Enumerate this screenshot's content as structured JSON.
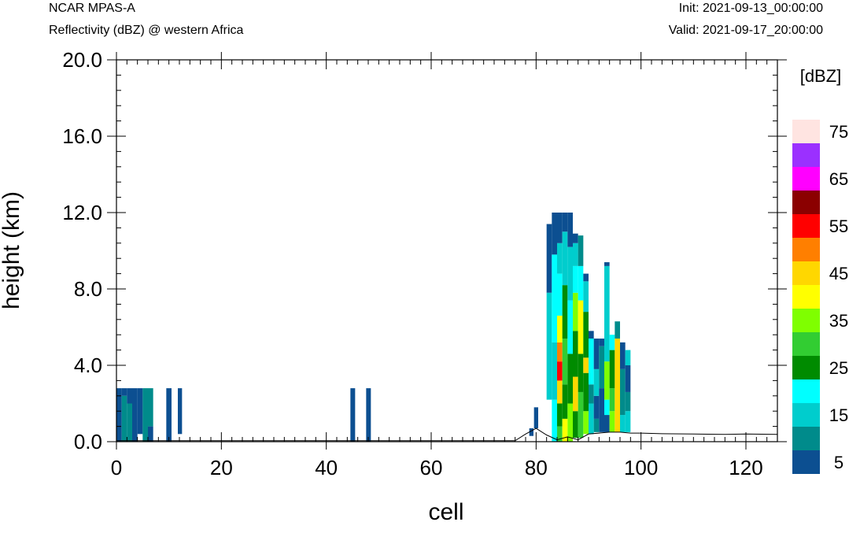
{
  "header": {
    "model": "NCAR MPAS-A",
    "subtitle": "Reflectivity (dBZ) @ western Africa",
    "init": "Init: 2021-09-13_00:00:00",
    "valid": "Valid: 2021-09-17_20:00:00"
  },
  "chart_data": {
    "type": "heatmap",
    "title": "Reflectivity (dBZ) @ western Africa",
    "xlabel": "cell",
    "ylabel": "height (km)",
    "xlim": [
      0,
      126
    ],
    "ylim": [
      0,
      20
    ],
    "x_ticks": [
      0,
      20,
      40,
      60,
      80,
      100,
      120
    ],
    "x_tick_labels": [
      "0",
      "20",
      "40",
      "60",
      "80",
      "100",
      "120"
    ],
    "y_ticks": [
      0,
      4,
      8,
      12,
      16,
      20
    ],
    "y_tick_labels": [
      "0.0",
      "4.0",
      "8.0",
      "12.0",
      "16.0",
      "20.0"
    ],
    "colorbar": {
      "unit_label": "[dBZ]",
      "levels": [
        5,
        10,
        15,
        20,
        25,
        30,
        35,
        40,
        45,
        50,
        55,
        60,
        65,
        70,
        75
      ],
      "colors": [
        "#0c4f91",
        "#008b8b",
        "#00cdcd",
        "#00ffff",
        "#008b00",
        "#32cd32",
        "#7fff00",
        "#ffff00",
        "#ffd700",
        "#ff7f00",
        "#ff0000",
        "#8b0000",
        "#ff00ff",
        "#9b30ff",
        "#ffe4e1"
      ],
      "tick_labels": [
        "5",
        "15",
        "25",
        "35",
        "45",
        "55",
        "65",
        "75"
      ]
    },
    "terrain": [
      [
        0,
        0.05
      ],
      [
        20,
        0.05
      ],
      [
        40,
        0.05
      ],
      [
        60,
        0.05
      ],
      [
        76,
        0.05
      ],
      [
        78,
        0.4
      ],
      [
        80,
        0.7
      ],
      [
        82,
        0.35
      ],
      [
        84,
        0.1
      ],
      [
        86,
        0.25
      ],
      [
        88,
        0.1
      ],
      [
        90,
        0.4
      ],
      [
        94,
        0.5
      ],
      [
        96,
        0.5
      ],
      [
        98,
        0.45
      ],
      [
        100,
        0.45
      ],
      [
        104,
        0.42
      ],
      [
        110,
        0.4
      ],
      [
        116,
        0.38
      ],
      [
        120,
        0.4
      ],
      [
        126,
        0.38
      ]
    ],
    "columns": [
      {
        "x": 0,
        "w": 1,
        "cells": [
          [
            0,
            2.8,
            5
          ]
        ]
      },
      {
        "x": 1,
        "w": 1,
        "cells": [
          [
            0,
            2.4,
            10
          ],
          [
            2.4,
            2.8,
            5
          ]
        ]
      },
      {
        "x": 2,
        "w": 1,
        "cells": [
          [
            0,
            2.0,
            10
          ],
          [
            2.0,
            2.8,
            5
          ]
        ]
      },
      {
        "x": 3,
        "w": 1,
        "cells": [
          [
            0,
            2.8,
            5
          ]
        ]
      },
      {
        "x": 4,
        "w": 1,
        "cells": [
          [
            0.4,
            2.8,
            5
          ]
        ]
      },
      {
        "x": 5,
        "w": 1,
        "cells": [
          [
            0,
            2.8,
            10
          ]
        ]
      },
      {
        "x": 6,
        "w": 1,
        "cells": [
          [
            0,
            0.8,
            5
          ],
          [
            0.8,
            2.8,
            10
          ]
        ]
      },
      {
        "x": 9.5,
        "w": 1,
        "cells": [
          [
            0,
            2.8,
            5
          ]
        ]
      },
      {
        "x": 11.7,
        "w": 0.8,
        "cells": [
          [
            0.4,
            2.8,
            5
          ]
        ]
      },
      {
        "x": 44.6,
        "w": 0.9,
        "cells": [
          [
            0,
            2.8,
            5
          ]
        ]
      },
      {
        "x": 47.6,
        "w": 0.9,
        "cells": [
          [
            0,
            2.8,
            5
          ]
        ]
      },
      {
        "x": 79.6,
        "w": 0.8,
        "cells": [
          [
            0.7,
            1.8,
            5
          ]
        ]
      },
      {
        "x": 78.7,
        "w": 0.8,
        "cells": [
          [
            0.3,
            0.7,
            5
          ]
        ]
      },
      {
        "x": 82,
        "w": 1,
        "cells": [
          [
            7.8,
            11.4,
            5
          ],
          [
            2.2,
            7.8,
            15
          ]
        ]
      },
      {
        "x": 83,
        "w": 1,
        "cells": [
          [
            0,
            2.2,
            20
          ],
          [
            2.2,
            5.2,
            15
          ],
          [
            5.2,
            9.8,
            20
          ],
          [
            9.8,
            12.0,
            5
          ]
        ]
      },
      {
        "x": 84,
        "w": 1,
        "cells": [
          [
            0,
            0.8,
            30
          ],
          [
            0.8,
            2.0,
            25
          ],
          [
            2.0,
            3.2,
            45
          ],
          [
            3.2,
            4.2,
            55
          ],
          [
            4.2,
            5.2,
            50
          ],
          [
            5.2,
            6.6,
            40
          ],
          [
            6.6,
            8.8,
            20
          ],
          [
            8.8,
            10.4,
            15
          ],
          [
            10.4,
            12.0,
            5
          ]
        ]
      },
      {
        "x": 85,
        "w": 1,
        "cells": [
          [
            0,
            1.2,
            40
          ],
          [
            1.2,
            3.0,
            25
          ],
          [
            3.0,
            5.4,
            30
          ],
          [
            5.4,
            8.2,
            25
          ],
          [
            8.2,
            11.0,
            15
          ],
          [
            11.0,
            12.0,
            5
          ]
        ]
      },
      {
        "x": 86,
        "w": 1,
        "cells": [
          [
            0,
            2.0,
            35
          ],
          [
            2.0,
            4.6,
            25
          ],
          [
            4.6,
            7.4,
            20
          ],
          [
            7.4,
            10.2,
            15
          ],
          [
            10.2,
            12.0,
            5
          ]
        ]
      },
      {
        "x": 87,
        "w": 1,
        "cells": [
          [
            0.2,
            1.6,
            25
          ],
          [
            1.6,
            3.4,
            45
          ],
          [
            3.4,
            5.8,
            25
          ],
          [
            5.8,
            7.8,
            35
          ],
          [
            7.8,
            9.2,
            20
          ],
          [
            9.2,
            10.4,
            15
          ],
          [
            10.4,
            10.9,
            5
          ]
        ]
      },
      {
        "x": 88,
        "w": 1,
        "cells": [
          [
            0.2,
            2.6,
            30
          ],
          [
            2.6,
            4.6,
            25
          ],
          [
            4.6,
            7.4,
            40
          ],
          [
            7.4,
            9.2,
            20
          ],
          [
            9.2,
            10.8,
            10
          ],
          [
            10.8,
            10.8,
            5
          ]
        ]
      },
      {
        "x": 89,
        "w": 1,
        "cells": [
          [
            0.4,
            1.6,
            35
          ],
          [
            1.6,
            3.6,
            25
          ],
          [
            3.6,
            4.4,
            45
          ],
          [
            4.4,
            6.8,
            25
          ],
          [
            6.8,
            8.4,
            15
          ],
          [
            8.4,
            8.8,
            5
          ]
        ]
      },
      {
        "x": 90,
        "w": 1,
        "cells": [
          [
            0.4,
            2.0,
            15
          ],
          [
            2.0,
            3.0,
            10
          ],
          [
            3.0,
            5.4,
            20
          ],
          [
            5.4,
            5.8,
            5
          ]
        ]
      },
      {
        "x": 91,
        "w": 1,
        "cells": [
          [
            0.5,
            1.2,
            10
          ],
          [
            1.2,
            2.4,
            5
          ],
          [
            2.4,
            3.8,
            15
          ],
          [
            3.8,
            5.4,
            5
          ]
        ]
      },
      {
        "x": 92,
        "w": 1,
        "cells": [
          [
            0.5,
            2.8,
            5
          ],
          [
            2.8,
            5.0,
            10
          ],
          [
            5.0,
            5.4,
            5
          ]
        ]
      },
      {
        "x": 93,
        "w": 1,
        "cells": [
          [
            0.5,
            1.4,
            5
          ],
          [
            1.4,
            2.2,
            20
          ],
          [
            2.2,
            4.2,
            35
          ],
          [
            4.2,
            9.2,
            15
          ],
          [
            9.2,
            9.4,
            5
          ]
        ]
      },
      {
        "x": 94,
        "w": 1,
        "cells": [
          [
            0.5,
            1.6,
            35
          ],
          [
            1.6,
            2.8,
            30
          ],
          [
            2.8,
            4.8,
            25
          ],
          [
            4.8,
            5.6,
            20
          ],
          [
            5.6,
            5.6,
            5
          ]
        ]
      },
      {
        "x": 95,
        "w": 1,
        "cells": [
          [
            0.5,
            5.4,
            45
          ],
          [
            5.4,
            6.3,
            10
          ]
        ]
      },
      {
        "x": 96,
        "w": 1,
        "cells": [
          [
            0.5,
            1.4,
            15
          ],
          [
            1.4,
            3.8,
            10
          ],
          [
            3.8,
            5.2,
            5
          ]
        ]
      },
      {
        "x": 97,
        "w": 1,
        "cells": [
          [
            0.5,
            1.6,
            15
          ],
          [
            1.6,
            2.6,
            10
          ],
          [
            2.6,
            4.0,
            5
          ],
          [
            4.0,
            4.8,
            15
          ],
          [
            4.8,
            4.8,
            5
          ]
        ]
      }
    ]
  }
}
